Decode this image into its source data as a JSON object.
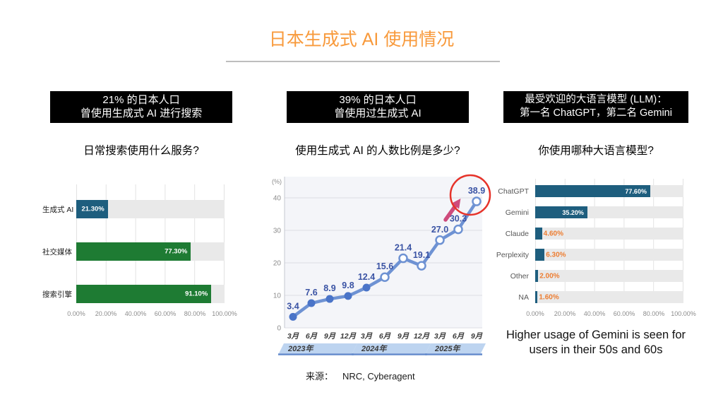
{
  "title": "日本生成式 AI 使用情况",
  "source": {
    "label": "来源：",
    "value": "NRC, Cyberagent"
  },
  "columns": [
    {
      "headline_lines": [
        "21% 的日本人口",
        "曾使用生成式 AI 进行搜索"
      ],
      "question": "日常搜索使用什么服务?"
    },
    {
      "headline_lines": [
        "39% 的日本人口",
        "曾使用过生成式 AI"
      ],
      "question": "使用生成式 AI 的人数比例是多少?"
    },
    {
      "headline_lines": [
        "最受欢迎的大语言模型 (LLM)：",
        "第一名 ChatGPT，第二名 Gemini"
      ],
      "question": "你使用哪种大语言模型?",
      "note": "Higher usage of Gemini is seen for users in their 50s and 60s"
    }
  ],
  "chart_data": [
    {
      "type": "bar",
      "orientation": "horizontal",
      "categories": [
        "生成式 AI",
        "社交媒体",
        "搜索引擎"
      ],
      "values": [
        21.3,
        77.3,
        91.1
      ],
      "value_labels": [
        "21.30%",
        "77.30%",
        "91.10%"
      ],
      "bar_colors": [
        "#1E5E7E",
        "#1E7B33",
        "#1E7B33"
      ],
      "label_inside": [
        true,
        true,
        true
      ],
      "xticks": [
        "0.00%",
        "20.00%",
        "40.00%",
        "60.00%",
        "80.00%",
        "100.00%"
      ],
      "xlim": [
        0,
        100
      ]
    },
    {
      "type": "line",
      "x": [
        "3月",
        "6月",
        "9月",
        "12月",
        "3月",
        "6月",
        "9月",
        "12月",
        "3月",
        "6月",
        "9月"
      ],
      "values": [
        3.4,
        7.6,
        8.9,
        9.8,
        12.4,
        15.6,
        21.4,
        19.1,
        27.0,
        30.3,
        38.9
      ],
      "value_labels": [
        "3.4",
        "7.6",
        "8.9",
        "9.8",
        "12.4",
        "15.6",
        "21.4",
        "19.1",
        "27.0",
        "30.3",
        "38.9"
      ],
      "marker_style": [
        "filled",
        "filled",
        "filled",
        "filled",
        "filled",
        "open",
        "open",
        "open",
        "open",
        "open",
        "open"
      ],
      "ylabel": "(%)",
      "yticks": [
        0,
        10,
        20,
        30,
        40
      ],
      "ylim": [
        0,
        45
      ],
      "grid": "horizontal",
      "year_bands": [
        {
          "label": "2023年",
          "from": 0,
          "to": 3
        },
        {
          "label": "2024年",
          "from": 4,
          "to": 7
        },
        {
          "label": "2025年",
          "from": 8,
          "to": 10
        }
      ],
      "annotation": {
        "highlight_last_point": true,
        "shapes": [
          "red-circle",
          "pink-up-arrow"
        ]
      }
    },
    {
      "type": "bar",
      "orientation": "horizontal",
      "categories": [
        "ChatGPT",
        "Gemini",
        "Claude",
        "Perplexity",
        "Other",
        "NA"
      ],
      "values": [
        77.6,
        35.2,
        4.6,
        6.3,
        2.0,
        1.6
      ],
      "value_labels": [
        "77.60%",
        "35.20%",
        "4.60%",
        "6.30%",
        "2.00%",
        "1.60%"
      ],
      "bar_colors": [
        "#1E5E7E",
        "#1E5E7E",
        "#1E5E7E",
        "#1E5E7E",
        "#1E5E7E",
        "#1E5E7E"
      ],
      "label_inside": [
        true,
        true,
        false,
        false,
        false,
        false
      ],
      "xticks": [
        "0.00%",
        "20.00%",
        "40.00%",
        "60.00%",
        "80.00%",
        "100.00%"
      ],
      "xlim": [
        0,
        100
      ]
    }
  ],
  "colors": {
    "accent_orange": "#F89A3C",
    "bar_blue": "#1E5E7E",
    "bar_green": "#1E7B33",
    "track_gray": "#E9E9E9",
    "line_blue": "#6E92D3",
    "marker_blue": "#4A74C8",
    "value_label_blue": "#3A53A4",
    "value_label_orange": "#ED7D31",
    "plot_bg": "#F4F5F9",
    "grid_line": "#DCDDE4",
    "band_fill": "#BDD4F0",
    "band_line": "#6189CC",
    "annotation_red": "#E6332A",
    "arrow_pink": "#CE4B7C",
    "axis_text": "#8C8C8C"
  }
}
